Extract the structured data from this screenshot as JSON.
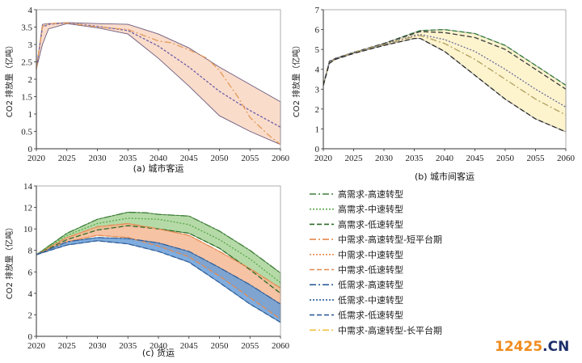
{
  "chart_data": [
    {
      "type": "area",
      "caption": "(a) 城市客运",
      "ylabel": "CO2 排放量（亿吨）",
      "xlim": [
        2020,
        2060
      ],
      "ylim": [
        0,
        4
      ],
      "xticks": [
        2020,
        2025,
        2030,
        2035,
        2040,
        2045,
        2050,
        2055,
        2060
      ],
      "yticks": [
        0,
        0.5,
        1,
        1.5,
        2,
        2.5,
        3,
        3.5,
        4
      ],
      "ytick_labels": [
        "0",
        "0.5",
        "1",
        "1.5",
        "2",
        "2.5",
        "3",
        "3.5",
        "4"
      ],
      "bands": [
        {
          "color": "#f9d6c2",
          "edge": "#6b5a7e",
          "x": [
            2020,
            2021,
            2022,
            2025,
            2030,
            2035,
            2040,
            2045,
            2050,
            2055,
            2060
          ],
          "upper": [
            2.3,
            3.58,
            3.6,
            3.63,
            3.6,
            3.58,
            3.3,
            2.9,
            2.35,
            1.85,
            1.35
          ],
          "lower": [
            2.3,
            3.0,
            3.45,
            3.6,
            3.48,
            3.3,
            2.6,
            1.8,
            0.95,
            0.5,
            0.12
          ]
        }
      ],
      "series": [
        {
          "color": "#6a5fa8",
          "dash": "3,2",
          "x": [
            2020,
            2021,
            2022,
            2025,
            2030,
            2035,
            2040,
            2045,
            2050,
            2055,
            2060
          ],
          "y": [
            2.3,
            3.5,
            3.58,
            3.62,
            3.52,
            3.4,
            2.95,
            2.35,
            1.65,
            1.1,
            0.62
          ]
        },
        {
          "color": "#e39b5a",
          "dash": "8,3,2,3",
          "x": [
            2020,
            2021,
            2022,
            2025,
            2030,
            2035,
            2040,
            2042,
            2045,
            2048,
            2050,
            2053,
            2055,
            2058,
            2060
          ],
          "y": [
            2.3,
            3.52,
            3.6,
            3.62,
            3.5,
            3.43,
            3.1,
            3.05,
            2.85,
            2.6,
            2.25,
            1.5,
            0.9,
            0.4,
            0.12
          ]
        }
      ]
    },
    {
      "type": "area",
      "caption": "(b) 城市间客运",
      "ylabel": "CO2 排放量（亿吨）",
      "xlim": [
        2020,
        2060
      ],
      "ylim": [
        0,
        7
      ],
      "xticks": [
        2020,
        2025,
        2030,
        2035,
        2040,
        2045,
        2050,
        2055,
        2060
      ],
      "yticks": [
        0,
        1,
        2,
        3,
        4,
        5,
        6,
        7
      ],
      "ytick_labels": [
        "0",
        "1",
        "2",
        "3",
        "4",
        "5",
        "6",
        "7"
      ],
      "bands": [
        {
          "color": "#fdf2c6",
          "edge": "#999999",
          "x": [
            2020,
            2021,
            2022,
            2025,
            2030,
            2035,
            2036,
            2040,
            2045,
            2050,
            2055,
            2060
          ],
          "upper": [
            3.2,
            4.4,
            4.55,
            4.85,
            5.3,
            5.85,
            5.95,
            6.0,
            5.8,
            5.2,
            4.2,
            3.2
          ],
          "lower": [
            3.2,
            4.3,
            4.5,
            4.8,
            5.2,
            5.55,
            5.55,
            4.9,
            3.7,
            2.5,
            1.5,
            0.85
          ]
        }
      ],
      "series": [
        {
          "color": "#2e7a3a",
          "dash": "6,3",
          "x": [
            2020,
            2021,
            2022,
            2025,
            2030,
            2035,
            2036,
            2040,
            2045,
            2050,
            2055,
            2060
          ],
          "y": [
            3.2,
            4.4,
            4.55,
            4.85,
            5.3,
            5.85,
            5.95,
            6.0,
            5.8,
            5.2,
            4.2,
            3.2
          ]
        },
        {
          "color": "#3b3b3b",
          "dash": "6,3",
          "x": [
            2020,
            2021,
            2022,
            2025,
            2030,
            2035,
            2036,
            2040,
            2045,
            2050,
            2055,
            2060
          ],
          "y": [
            3.2,
            4.4,
            4.55,
            4.85,
            5.3,
            5.8,
            5.9,
            5.85,
            5.6,
            5.0,
            4.0,
            3.0
          ]
        },
        {
          "color": "#6b6b9a",
          "dash": "2,2",
          "x": [
            2020,
            2021,
            2022,
            2025,
            2030,
            2035,
            2036,
            2040,
            2045,
            2050,
            2055,
            2060
          ],
          "y": [
            3.2,
            4.4,
            4.55,
            4.85,
            5.25,
            5.7,
            5.75,
            5.5,
            4.9,
            4.0,
            3.0,
            2.1
          ]
        },
        {
          "color": "#b0a060",
          "dash": "8,3,2,3",
          "x": [
            2020,
            2021,
            2022,
            2025,
            2030,
            2035,
            2036,
            2040,
            2045,
            2050,
            2055,
            2060
          ],
          "y": [
            3.2,
            4.35,
            4.5,
            4.85,
            5.25,
            5.65,
            5.7,
            5.3,
            4.5,
            3.5,
            2.5,
            1.7
          ]
        },
        {
          "color": "#2a2a2a",
          "dash": "6,3",
          "x": [
            2020,
            2021,
            2022,
            2025,
            2030,
            2035,
            2036,
            2040,
            2045,
            2050,
            2055,
            2060
          ],
          "y": [
            3.2,
            4.3,
            4.5,
            4.8,
            5.2,
            5.55,
            5.55,
            4.9,
            3.7,
            2.5,
            1.5,
            0.85
          ]
        }
      ]
    },
    {
      "type": "area",
      "caption": "(c) 货运",
      "ylabel": "CO2 排放量（亿吨）",
      "xlim": [
        2020,
        2060
      ],
      "ylim": [
        0,
        14
      ],
      "xticks": [
        2020,
        2025,
        2030,
        2035,
        2040,
        2045,
        2050,
        2055,
        2060
      ],
      "yticks": [
        0,
        2,
        4,
        6,
        8,
        10,
        12,
        14
      ],
      "ytick_labels": [
        "0",
        "2",
        "4",
        "6",
        "8",
        "10",
        "12",
        "14"
      ],
      "bands": [
        {
          "color": "#a8d398",
          "edge": "#3f7f3a",
          "x": [
            2020,
            2025,
            2030,
            2035,
            2038,
            2040,
            2045,
            2050,
            2055,
            2060
          ],
          "upper": [
            7.6,
            9.6,
            10.9,
            11.55,
            11.5,
            11.35,
            11.2,
            9.8,
            8.0,
            5.9
          ],
          "lower": [
            7.6,
            9.0,
            9.9,
            10.3,
            10.2,
            10.0,
            9.6,
            8.2,
            6.2,
            4.0
          ]
        },
        {
          "color": "#f4b894",
          "edge": "#e58a50",
          "x": [
            2020,
            2025,
            2030,
            2035,
            2040,
            2045,
            2050,
            2055,
            2060
          ],
          "upper": [
            7.6,
            9.2,
            10.2,
            10.5,
            10.0,
            9.4,
            7.9,
            6.3,
            4.5
          ],
          "lower": [
            7.6,
            8.8,
            9.4,
            9.2,
            8.4,
            7.4,
            5.6,
            3.6,
            1.6
          ]
        },
        {
          "color": "#6a9fd8",
          "edge": "#2f5f9a",
          "x": [
            2020,
            2025,
            2030,
            2035,
            2040,
            2045,
            2050,
            2055,
            2060
          ],
          "upper": [
            7.6,
            8.8,
            9.2,
            9.1,
            8.7,
            7.9,
            6.4,
            4.8,
            3.0
          ],
          "lower": [
            7.6,
            8.5,
            8.9,
            8.6,
            7.9,
            6.9,
            5.0,
            3.0,
            1.3
          ]
        }
      ],
      "series": [
        {
          "color": "#3f7f3a",
          "dash": "8,3,2,3",
          "x": [
            2020,
            2025,
            2030,
            2035,
            2038,
            2040,
            2045,
            2050,
            2055,
            2060
          ],
          "y": [
            7.6,
            9.6,
            10.9,
            11.55,
            11.5,
            11.35,
            11.2,
            9.8,
            8.0,
            5.9
          ]
        },
        {
          "color": "#5aa84a",
          "dash": "2,2",
          "x": [
            2020,
            2025,
            2030,
            2035,
            2040,
            2045,
            2050,
            2055,
            2060
          ],
          "y": [
            7.6,
            9.4,
            10.5,
            11.0,
            10.9,
            10.4,
            9.0,
            7.2,
            5.0
          ]
        },
        {
          "color": "#2e6a2a",
          "dash": "6,3",
          "x": [
            2020,
            2025,
            2030,
            2035,
            2040,
            2045,
            2050,
            2055,
            2060
          ],
          "y": [
            7.6,
            9.0,
            9.9,
            10.3,
            10.0,
            9.6,
            8.2,
            6.2,
            4.0
          ]
        },
        {
          "color": "#e58a50",
          "dash": "8,3,2,3",
          "x": [
            2020,
            2025,
            2030,
            2035,
            2040,
            2045,
            2050,
            2055,
            2060
          ],
          "y": [
            7.6,
            9.2,
            10.2,
            10.5,
            10.0,
            9.4,
            7.9,
            6.3,
            4.5
          ]
        },
        {
          "color": "#e58a50",
          "dash": "6,3",
          "x": [
            2020,
            2025,
            2030,
            2035,
            2040,
            2045,
            2050,
            2055,
            2060
          ],
          "y": [
            7.6,
            8.8,
            9.4,
            9.2,
            8.4,
            7.4,
            5.6,
            3.6,
            1.6
          ]
        },
        {
          "color": "#2f5f9a",
          "dash": "8,3,2,3",
          "x": [
            2020,
            2025,
            2030,
            2035,
            2040,
            2045,
            2050,
            2055,
            2060
          ],
          "y": [
            7.6,
            8.8,
            9.2,
            9.1,
            8.7,
            7.9,
            6.4,
            4.8,
            3.0
          ]
        },
        {
          "color": "#2f5f9a",
          "dash": "6,3",
          "x": [
            2020,
            2025,
            2030,
            2035,
            2040,
            2045,
            2050,
            2055,
            2060
          ],
          "y": [
            7.6,
            8.5,
            8.9,
            8.6,
            7.9,
            6.9,
            5.0,
            3.0,
            1.3
          ]
        }
      ]
    }
  ],
  "legend": {
    "entries": [
      {
        "label": "高需求-高速转型",
        "color": "#3f7f3a",
        "dash": "8,3,2,3"
      },
      {
        "label": "高需求-中速转型",
        "color": "#5aa84a",
        "dash": "2,2"
      },
      {
        "label": "高需求-低速转型",
        "color": "#2e6a2a",
        "dash": "6,3"
      },
      {
        "label": "中需求-高速转型-短平台期",
        "color": "#e58a50",
        "dash": "8,3,2,3"
      },
      {
        "label": "中需求-中速转型",
        "color": "#e58a50",
        "dash": "2,2"
      },
      {
        "label": "中需求-低速转型",
        "color": "#e58a50",
        "dash": "6,3"
      },
      {
        "label": "低需求-高速转型",
        "color": "#2f5f9a",
        "dash": "8,3,2,3"
      },
      {
        "label": "低需求-中速转型",
        "color": "#2f5f9a",
        "dash": "2,2"
      },
      {
        "label": "低需求-低速转型",
        "color": "#2f5f9a",
        "dash": "6,3"
      },
      {
        "label": "中需求-高速转型-长平台期",
        "color": "#f0c040",
        "dash": "8,3,2,3"
      }
    ]
  },
  "watermark": {
    "part1": "12425",
    "part2": ".CN"
  }
}
